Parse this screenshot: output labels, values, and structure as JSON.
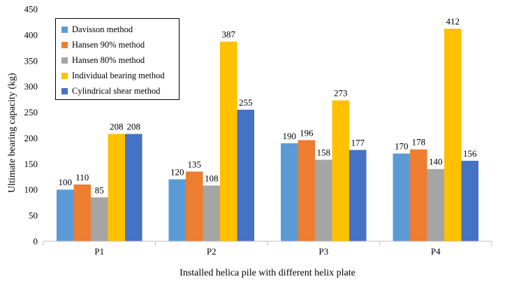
{
  "chart_data": {
    "type": "bar",
    "title": "",
    "xlabel": "Installed helica pile with different helix plate",
    "ylabel": "Ultimate bearing capacity (kg)",
    "ylim": [
      0,
      450
    ],
    "yticks": [
      "0",
      "50",
      "100",
      "150",
      "200",
      "250",
      "300",
      "350",
      "400",
      "450"
    ],
    "categories": [
      "P1",
      "P2",
      "P3",
      "P4"
    ],
    "grid": false,
    "legend_position": "top-left",
    "series": [
      {
        "name": "Davisson method",
        "color": "#5b9bd5",
        "values": [
          100,
          120,
          190,
          170
        ]
      },
      {
        "name": "Hansen 90% method",
        "color": "#ed7d31",
        "values": [
          110,
          135,
          196,
          178
        ]
      },
      {
        "name": "Hansen 80% method",
        "color": "#a5a5a5",
        "values": [
          85,
          108,
          158,
          140
        ]
      },
      {
        "name": "Individual bearing method",
        "color": "#ffc000",
        "values": [
          208,
          387,
          273,
          412
        ]
      },
      {
        "name": "Cylindrical shear method",
        "color": "#4472c4",
        "values": [
          208,
          255,
          177,
          156
        ]
      }
    ]
  }
}
